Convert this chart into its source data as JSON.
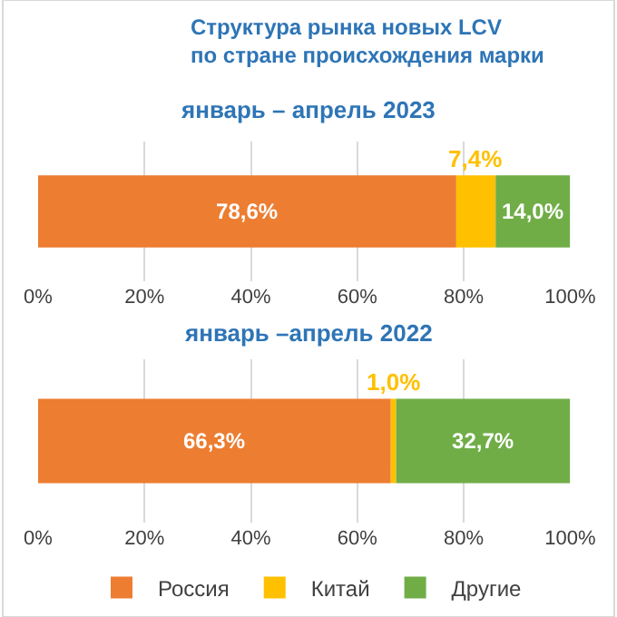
{
  "chart_data": [
    {
      "type": "bar",
      "orientation": "horizontal",
      "stacked": true,
      "title": "Структура рынка новых LCV\nпо стране происхождения марки",
      "subtitle": "январь – апрель 2023",
      "categories": [
        null
      ],
      "xlim": [
        0,
        100
      ],
      "xticks": [
        {
          "value": 0,
          "label": "0%"
        },
        {
          "value": 20,
          "label": "20%"
        },
        {
          "value": 40,
          "label": "40%"
        },
        {
          "value": 60,
          "label": "60%"
        },
        {
          "value": 80,
          "label": "80%"
        },
        {
          "value": 100,
          "label": "100%"
        }
      ],
      "grid": "x",
      "legend": "bottom",
      "series": [
        {
          "name": "Россия",
          "color": "#ed7d31",
          "values": [
            78.6
          ],
          "value_labels": [
            "78,6%"
          ]
        },
        {
          "name": "Китай",
          "color": "#ffc000",
          "values": [
            7.4
          ],
          "value_labels": [
            "7,4%"
          ]
        },
        {
          "name": "Другие",
          "color": "#70ad47",
          "values": [
            14.0
          ],
          "value_labels": [
            "14,0%"
          ]
        }
      ]
    },
    {
      "type": "bar",
      "orientation": "horizontal",
      "stacked": true,
      "title": "январь –апрель 2022",
      "categories": [
        null
      ],
      "xlim": [
        0,
        100
      ],
      "xticks": [
        {
          "value": 0,
          "label": "0%"
        },
        {
          "value": 20,
          "label": "20%"
        },
        {
          "value": 40,
          "label": "40%"
        },
        {
          "value": 60,
          "label": "60%"
        },
        {
          "value": 80,
          "label": "80%"
        },
        {
          "value": 100,
          "label": "100%"
        }
      ],
      "grid": "x",
      "series": [
        {
          "color": "#ed7d31",
          "values": [
            66.3
          ],
          "value_labels": [
            "66,3%"
          ]
        },
        {
          "color": "#ffc000",
          "values": [
            1.0
          ],
          "value_labels": [
            "1,0%"
          ]
        },
        {
          "color": "#70ad47",
          "values": [
            32.7
          ],
          "value_labels": [
            "32,7%"
          ]
        }
      ]
    }
  ]
}
